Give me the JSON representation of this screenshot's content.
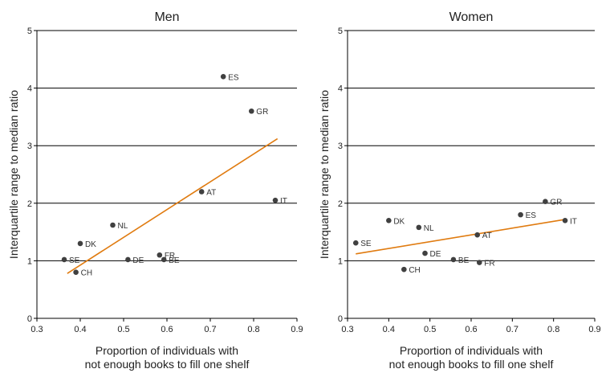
{
  "chart_data": [
    {
      "type": "scatter",
      "title": "Men",
      "xlabel": [
        "Proportion of individuals with",
        "not enough books to fill one shelf"
      ],
      "ylabel": "Interquartile range to median ratio",
      "xlim": [
        0.3,
        0.9
      ],
      "ylim": [
        0,
        5
      ],
      "x_ticks": [
        "0.3",
        "0.4",
        "0.5",
        "0.6",
        "0.7",
        "0.8",
        "0.9"
      ],
      "y_ticks": [
        "0",
        "1",
        "2",
        "3",
        "4",
        "5"
      ],
      "grid": "horizontal",
      "point_color": "#404040",
      "trend_color": "#e07b10",
      "points": [
        {
          "label": "ES",
          "x": 0.73,
          "y": 4.2
        },
        {
          "label": "GR",
          "x": 0.795,
          "y": 3.6
        },
        {
          "label": "AT",
          "x": 0.68,
          "y": 2.2
        },
        {
          "label": "IT",
          "x": 0.85,
          "y": 2.05
        },
        {
          "label": "NL",
          "x": 0.475,
          "y": 1.62
        },
        {
          "label": "DK",
          "x": 0.4,
          "y": 1.3
        },
        {
          "label": "FR",
          "x": 0.583,
          "y": 1.1
        },
        {
          "label": "BE",
          "x": 0.593,
          "y": 1.02
        },
        {
          "label": "DE",
          "x": 0.51,
          "y": 1.02
        },
        {
          "label": "SE",
          "x": 0.363,
          "y": 1.02
        },
        {
          "label": "CH",
          "x": 0.39,
          "y": 0.8
        }
      ],
      "trendline": {
        "x": [
          0.37,
          0.855
        ],
        "y": [
          0.78,
          3.12
        ]
      }
    },
    {
      "type": "scatter",
      "title": "Women",
      "xlabel": [
        "Proportion of individuals with",
        "not enough books to fill one shelf"
      ],
      "ylabel": "Interquartile range to median ratio",
      "xlim": [
        0.3,
        0.9
      ],
      "ylim": [
        0,
        5
      ],
      "x_ticks": [
        "0.3",
        "0.4",
        "0.5",
        "0.6",
        "0.7",
        "0.8",
        "0.9"
      ],
      "y_ticks": [
        "0",
        "1",
        "2",
        "3",
        "4",
        "5"
      ],
      "grid": "horizontal",
      "point_color": "#404040",
      "trend_color": "#e07b10",
      "points": [
        {
          "label": "GR",
          "x": 0.78,
          "y": 2.03
        },
        {
          "label": "ES",
          "x": 0.72,
          "y": 1.8
        },
        {
          "label": "IT",
          "x": 0.828,
          "y": 1.7
        },
        {
          "label": "DK",
          "x": 0.4,
          "y": 1.7
        },
        {
          "label": "NL",
          "x": 0.473,
          "y": 1.58
        },
        {
          "label": "AT",
          "x": 0.615,
          "y": 1.45
        },
        {
          "label": "SE",
          "x": 0.32,
          "y": 1.31
        },
        {
          "label": "DE",
          "x": 0.488,
          "y": 1.13
        },
        {
          "label": "BE",
          "x": 0.557,
          "y": 1.02
        },
        {
          "label": "FR",
          "x": 0.62,
          "y": 0.97
        },
        {
          "label": "CH",
          "x": 0.437,
          "y": 0.85
        }
      ],
      "trendline": {
        "x": [
          0.32,
          0.83
        ],
        "y": [
          1.12,
          1.72
        ]
      }
    }
  ]
}
